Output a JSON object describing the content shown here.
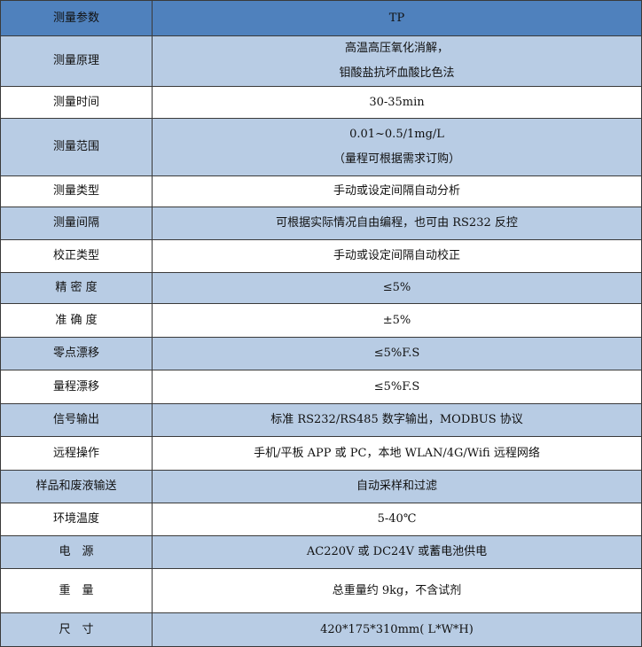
{
  "colors": {
    "header": "#4f81bd",
    "alt_row": "#b8cce4",
    "white_row": "#ffffff"
  },
  "header": {
    "param": "测量参数",
    "value": "TP"
  },
  "rows": [
    {
      "param": "测量原理",
      "lines": [
        "高温高压氧化消解，",
        "钼酸盐抗坏血酸比色法"
      ]
    },
    {
      "param": "测量时间",
      "lines": [
        "30-35min"
      ]
    },
    {
      "param": "测量范围",
      "lines": [
        "0.01~0.5/1mg/L",
        "（量程可根据需求订购）"
      ]
    },
    {
      "param": "测量类型",
      "lines": [
        "手动或设定间隔自动分析"
      ]
    },
    {
      "param": "测量间隔",
      "lines": [
        "可根据实际情况自由编程，也可由 RS232 反控"
      ]
    },
    {
      "param": "校正类型",
      "lines": [
        "手动或设定间隔自动校正"
      ]
    },
    {
      "param": "精 密 度",
      "lines": [
        "≤5%"
      ]
    },
    {
      "param": "准 确 度",
      "lines": [
        "±5%"
      ]
    },
    {
      "param": "零点漂移",
      "lines": [
        "≤5%F.S"
      ]
    },
    {
      "param": "量程漂移",
      "lines": [
        "≤5%F.S"
      ]
    },
    {
      "param": "信号输出",
      "lines": [
        "标准 RS232/RS485 数字输出，MODBUS 协议"
      ]
    },
    {
      "param": "远程操作",
      "lines": [
        "手机/平板 APP 或 PC，本地 WLAN/4G/Wifi 远程网络"
      ]
    },
    {
      "param": "样品和废液输送",
      "lines": [
        "自动采样和过滤"
      ]
    },
    {
      "param": "环境温度",
      "lines": [
        "5-40℃"
      ]
    },
    {
      "param": "电　源",
      "lines": [
        "AC220V 或 DC24V 或蓄电池供电"
      ]
    },
    {
      "param": "重　量",
      "lines": [
        "总重量约 9kg，不含试剂"
      ]
    },
    {
      "param": "尺　寸",
      "lines": [
        "420*175*310mm( L*W*H)"
      ]
    }
  ]
}
